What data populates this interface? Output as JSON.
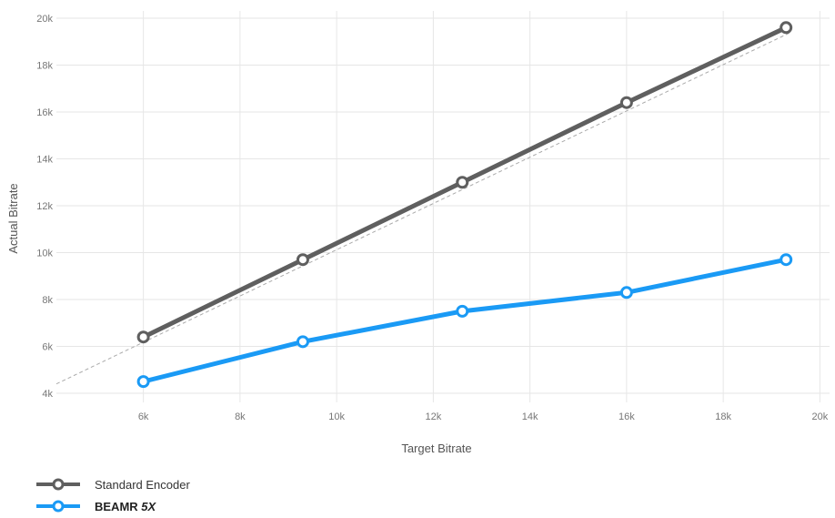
{
  "chart_data": {
    "type": "line",
    "xlabel": "Target Bitrate",
    "ylabel": "Actual Bitrate",
    "xlim": [
      4200,
      20200
    ],
    "ylim": [
      4000,
      20000
    ],
    "x_ticks": [
      6000,
      8000,
      10000,
      12000,
      14000,
      16000,
      18000,
      20000
    ],
    "x_tick_labels": [
      "6k",
      "8k",
      "10k",
      "12k",
      "14k",
      "16k",
      "18k",
      "20k"
    ],
    "y_ticks": [
      4000,
      6000,
      8000,
      10000,
      12000,
      14000,
      16000,
      18000,
      20000
    ],
    "y_tick_labels": [
      "4k",
      "6k",
      "8k",
      "10k",
      "12k",
      "14k",
      "16k",
      "18k",
      "20k"
    ],
    "grid": true,
    "legend_position": "bottom-left",
    "reference_line": {
      "style": "dashed",
      "color": "#aaaaaa",
      "from": [
        4200,
        4400
      ],
      "to": [
        19400,
        19400
      ]
    },
    "series": [
      {
        "name": "Standard Encoder",
        "color": "#5f5f5f",
        "x": [
          6000,
          9300,
          12600,
          16000,
          19300
        ],
        "values": [
          6400,
          9700,
          13000,
          16400,
          19600
        ]
      },
      {
        "name": "BEAMR 5X",
        "color": "#1a9af5",
        "x": [
          6000,
          9300,
          12600,
          16000,
          19300
        ],
        "values": [
          4500,
          6200,
          7500,
          8300,
          9700
        ]
      }
    ]
  },
  "legend": {
    "items": [
      {
        "label": "Standard Encoder",
        "color": "#5f5f5f"
      },
      {
        "label_main": "BEAMR",
        "label_suffix": "5X",
        "color": "#1a9af5"
      }
    ]
  }
}
